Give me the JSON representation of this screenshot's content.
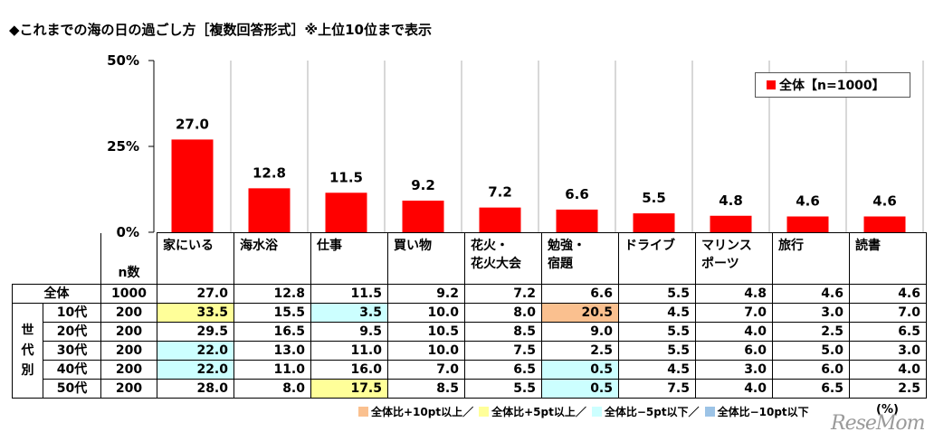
{
  "title": "◆これまでの海の日の過ごし方［複数回答形式］※上位10位まで表示",
  "legend": {
    "label": "全体【n=1000】",
    "color": "#ff0000"
  },
  "chart_data": {
    "type": "bar",
    "categories": [
      "家にいる",
      "海水浴",
      "仕事",
      "買い物",
      "花火・花火大会",
      "勉強・宿題",
      "ドライブ",
      "マリンスポーツ",
      "旅行",
      "読書"
    ],
    "series": [
      {
        "name": "全体【n=1000】",
        "values": [
          27.0,
          12.8,
          11.5,
          9.2,
          7.2,
          6.6,
          5.5,
          4.8,
          4.6,
          4.6
        ]
      }
    ],
    "ylim": [
      0,
      50
    ],
    "yticks": [
      "0%",
      "25%",
      "50%"
    ],
    "ytick_values": [
      0,
      25,
      50
    ],
    "grid": "vertical separators"
  },
  "table": {
    "n_label": "n数",
    "group_label": "世代別",
    "headers": [
      [
        "家にいる"
      ],
      [
        "海水浴"
      ],
      [
        "仕事"
      ],
      [
        "買い物"
      ],
      [
        "花火・",
        "花火大会"
      ],
      [
        "勉強・",
        "宿題"
      ],
      [
        "ドライブ"
      ],
      [
        "マリンス",
        "ポーツ"
      ],
      [
        "旅行"
      ],
      [
        "読書"
      ]
    ],
    "total": {
      "label": "全体",
      "n": "1000",
      "values": [
        "27.0",
        "12.8",
        "11.5",
        "9.2",
        "7.2",
        "6.6",
        "5.5",
        "4.8",
        "4.6",
        "4.6"
      ]
    },
    "rows": [
      {
        "label": "10代",
        "n": "200",
        "values": [
          "33.5",
          "15.5",
          "3.5",
          "10.0",
          "8.0",
          "20.5",
          "4.5",
          "7.0",
          "3.0",
          "7.0"
        ],
        "highlight": [
          "y",
          "",
          "l",
          "",
          "",
          "o",
          "",
          "",
          "",
          ""
        ]
      },
      {
        "label": "20代",
        "n": "200",
        "values": [
          "29.5",
          "16.5",
          "9.5",
          "10.5",
          "8.5",
          "9.0",
          "5.5",
          "4.0",
          "2.5",
          "6.5"
        ],
        "highlight": [
          "",
          "",
          "",
          "",
          "",
          "",
          "",
          "",
          "",
          ""
        ]
      },
      {
        "label": "30代",
        "n": "200",
        "values": [
          "22.0",
          "13.0",
          "11.0",
          "10.0",
          "7.5",
          "2.5",
          "5.5",
          "6.0",
          "5.0",
          "3.0"
        ],
        "highlight": [
          "l",
          "",
          "",
          "",
          "",
          "",
          "",
          "",
          "",
          ""
        ]
      },
      {
        "label": "40代",
        "n": "200",
        "values": [
          "22.0",
          "11.0",
          "16.0",
          "7.0",
          "6.5",
          "0.5",
          "4.5",
          "3.0",
          "6.0",
          "4.0"
        ],
        "highlight": [
          "l",
          "",
          "",
          "",
          "",
          "l",
          "",
          "",
          "",
          ""
        ]
      },
      {
        "label": "50代",
        "n": "200",
        "values": [
          "28.0",
          "8.0",
          "17.5",
          "8.5",
          "5.5",
          "0.5",
          "7.5",
          "4.0",
          "6.5",
          "2.5"
        ],
        "highlight": [
          "",
          "",
          "y",
          "",
          "",
          "l",
          "",
          "",
          "",
          ""
        ]
      }
    ]
  },
  "notes": [
    {
      "label": "全体比+10pt以上／",
      "color": "#fac08f"
    },
    {
      "label": "全体比+5pt以上／",
      "color": "#ffff99"
    },
    {
      "label": "全体比−5pt以下／",
      "color": "#ccffff"
    },
    {
      "label": "全体比−10pt以下",
      "color": "#9cc3e6"
    }
  ],
  "unit": "(%)",
  "watermark": "ReseMom"
}
